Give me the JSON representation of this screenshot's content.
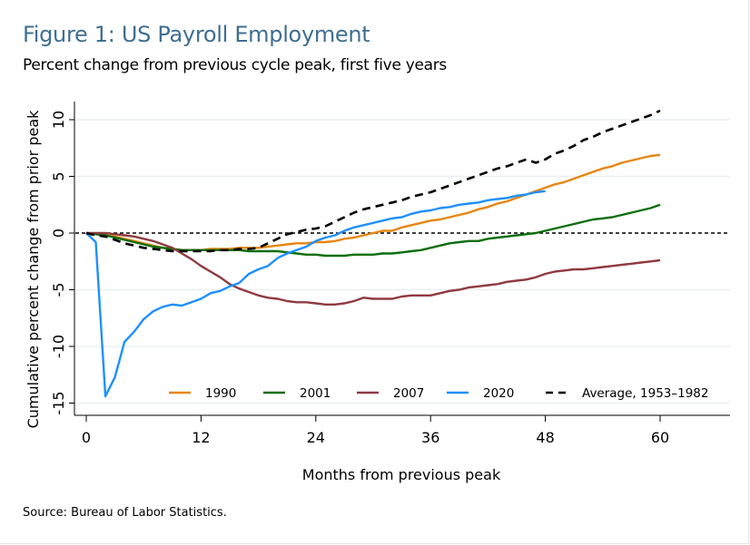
{
  "header": {
    "title": "Figure 1: US Payroll Employment",
    "subtitle": "Percent change from previous cycle peak, first five years"
  },
  "footer": {
    "source": "Source: Bureau of Labor Statistics."
  },
  "chart_data": {
    "type": "line",
    "title": "Figure 1: US Payroll Employment",
    "subtitle": "Percent change from previous cycle peak, first five years",
    "xlabel": "Months from previous peak",
    "ylabel": "Cumulative percent change from prior peak",
    "xlim": [
      -1,
      67
    ],
    "ylim": [
      -16,
      11
    ],
    "xticks": [
      0,
      12,
      24,
      36,
      48,
      60
    ],
    "yticks": [
      -15,
      -10,
      -5,
      0,
      5,
      10
    ],
    "grid": "horizontal",
    "reference_line": {
      "y": 0,
      "style": "dotted",
      "color": "#000000"
    },
    "legend": {
      "placement": "bottom-inside",
      "orientation": "horizontal"
    },
    "series": [
      {
        "name": "1990",
        "color": "#e8850f",
        "style": "solid",
        "x": [
          0,
          1,
          2,
          3,
          4,
          5,
          6,
          7,
          8,
          9,
          10,
          11,
          12,
          13,
          14,
          15,
          16,
          17,
          18,
          19,
          20,
          21,
          22,
          23,
          24,
          25,
          26,
          27,
          28,
          29,
          30,
          31,
          32,
          33,
          34,
          35,
          36,
          37,
          38,
          39,
          40,
          41,
          42,
          43,
          44,
          45,
          46,
          47,
          48,
          49,
          50,
          51,
          52,
          53,
          54,
          55,
          56,
          57,
          58,
          59,
          60
        ],
        "values": [
          0,
          -0.1,
          -0.2,
          -0.3,
          -0.5,
          -0.7,
          -0.9,
          -1.1,
          -1.3,
          -1.4,
          -1.5,
          -1.5,
          -1.5,
          -1.4,
          -1.4,
          -1.4,
          -1.3,
          -1.3,
          -1.3,
          -1.2,
          -1.1,
          -1.0,
          -0.9,
          -0.9,
          -0.8,
          -0.8,
          -0.7,
          -0.5,
          -0.4,
          -0.2,
          0.0,
          0.2,
          0.2,
          0.5,
          0.7,
          0.9,
          1.1,
          1.2,
          1.4,
          1.6,
          1.8,
          2.1,
          2.3,
          2.6,
          2.8,
          3.1,
          3.4,
          3.7,
          4.0,
          4.3,
          4.5,
          4.8,
          5.1,
          5.4,
          5.7,
          5.9,
          6.2,
          6.4,
          6.6,
          6.8,
          6.9
        ]
      },
      {
        "name": "2001",
        "color": "#0b6e0b",
        "style": "solid",
        "x": [
          0,
          1,
          2,
          3,
          4,
          5,
          6,
          7,
          8,
          9,
          10,
          11,
          12,
          13,
          14,
          15,
          16,
          17,
          18,
          19,
          20,
          21,
          22,
          23,
          24,
          25,
          26,
          27,
          28,
          29,
          30,
          31,
          32,
          33,
          34,
          35,
          36,
          37,
          38,
          39,
          40,
          41,
          42,
          43,
          44,
          45,
          46,
          47,
          48,
          49,
          50,
          51,
          52,
          53,
          54,
          55,
          56,
          57,
          58,
          59,
          60
        ],
        "values": [
          0,
          -0.1,
          -0.2,
          -0.4,
          -0.6,
          -0.8,
          -1.0,
          -1.2,
          -1.3,
          -1.4,
          -1.5,
          -1.5,
          -1.5,
          -1.5,
          -1.5,
          -1.5,
          -1.5,
          -1.6,
          -1.6,
          -1.6,
          -1.6,
          -1.7,
          -1.8,
          -1.9,
          -1.9,
          -2.0,
          -2.0,
          -2.0,
          -1.9,
          -1.9,
          -1.9,
          -1.8,
          -1.8,
          -1.7,
          -1.6,
          -1.5,
          -1.3,
          -1.1,
          -0.9,
          -0.8,
          -0.7,
          -0.7,
          -0.5,
          -0.4,
          -0.3,
          -0.2,
          -0.1,
          0.0,
          0.2,
          0.4,
          0.6,
          0.8,
          1.0,
          1.2,
          1.3,
          1.4,
          1.6,
          1.8,
          2.0,
          2.2,
          2.5
        ]
      },
      {
        "name": "2007",
        "color": "#8f3a3f",
        "style": "solid",
        "x": [
          0,
          1,
          2,
          3,
          4,
          5,
          6,
          7,
          8,
          9,
          10,
          11,
          12,
          13,
          14,
          15,
          16,
          17,
          18,
          19,
          20,
          21,
          22,
          23,
          24,
          25,
          26,
          27,
          28,
          29,
          30,
          31,
          32,
          33,
          34,
          35,
          36,
          37,
          38,
          39,
          40,
          41,
          42,
          43,
          44,
          45,
          46,
          47,
          48,
          49,
          50,
          51,
          52,
          53,
          54,
          55,
          56,
          57,
          58,
          59,
          60
        ],
        "values": [
          0,
          0,
          0,
          -0.1,
          -0.2,
          -0.3,
          -0.5,
          -0.7,
          -1.0,
          -1.3,
          -1.8,
          -2.3,
          -2.9,
          -3.4,
          -3.9,
          -4.5,
          -4.9,
          -5.2,
          -5.5,
          -5.7,
          -5.8,
          -6.0,
          -6.1,
          -6.1,
          -6.2,
          -6.3,
          -6.3,
          -6.2,
          -6.0,
          -5.7,
          -5.8,
          -5.8,
          -5.8,
          -5.6,
          -5.5,
          -5.5,
          -5.5,
          -5.3,
          -5.1,
          -5.0,
          -4.8,
          -4.7,
          -4.6,
          -4.5,
          -4.3,
          -4.2,
          -4.1,
          -3.9,
          -3.6,
          -3.4,
          -3.3,
          -3.2,
          -3.2,
          -3.1,
          -3.0,
          -2.9,
          -2.8,
          -2.7,
          -2.6,
          -2.5,
          -2.4
        ]
      },
      {
        "name": "2020",
        "color": "#1e90ff",
        "style": "solid",
        "x": [
          0,
          1,
          2,
          3,
          4,
          5,
          6,
          7,
          8,
          9,
          10,
          11,
          12,
          13,
          14,
          15,
          16,
          17,
          18,
          19,
          20,
          21,
          22,
          23,
          24,
          25,
          26,
          27,
          28,
          29,
          30,
          31,
          32,
          33,
          34,
          35,
          36,
          37,
          38,
          39,
          40,
          41,
          42,
          43,
          44,
          45,
          46,
          47,
          48
        ],
        "values": [
          0,
          -0.8,
          -14.4,
          -12.7,
          -9.6,
          -8.7,
          -7.6,
          -6.9,
          -6.5,
          -6.3,
          -6.4,
          -6.1,
          -5.8,
          -5.3,
          -5.1,
          -4.7,
          -4.4,
          -3.6,
          -3.2,
          -2.9,
          -2.2,
          -1.8,
          -1.5,
          -1.2,
          -0.7,
          -0.4,
          -0.2,
          0.2,
          0.5,
          0.7,
          0.9,
          1.1,
          1.3,
          1.4,
          1.7,
          1.9,
          2.0,
          2.2,
          2.3,
          2.5,
          2.6,
          2.7,
          2.9,
          3.0,
          3.1,
          3.3,
          3.4,
          3.6,
          3.7
        ]
      },
      {
        "name": "Average, 1953–1982",
        "color": "#000000",
        "style": "dashed",
        "x": [
          0,
          1,
          2,
          3,
          4,
          5,
          6,
          7,
          8,
          9,
          10,
          11,
          12,
          13,
          14,
          15,
          16,
          17,
          18,
          19,
          20,
          21,
          22,
          23,
          24,
          25,
          26,
          27,
          28,
          29,
          30,
          31,
          32,
          33,
          34,
          35,
          36,
          37,
          38,
          39,
          40,
          41,
          42,
          43,
          44,
          45,
          46,
          47,
          48,
          49,
          50,
          51,
          52,
          53,
          54,
          55,
          56,
          57,
          58,
          59,
          60
        ],
        "values": [
          0,
          -0.2,
          -0.3,
          -0.6,
          -0.9,
          -1.1,
          -1.3,
          -1.4,
          -1.5,
          -1.6,
          -1.6,
          -1.6,
          -1.6,
          -1.6,
          -1.5,
          -1.5,
          -1.4,
          -1.4,
          -1.3,
          -0.9,
          -0.5,
          -0.1,
          0.1,
          0.3,
          0.4,
          0.6,
          1.0,
          1.4,
          1.8,
          2.1,
          2.3,
          2.5,
          2.7,
          2.9,
          3.2,
          3.4,
          3.6,
          3.9,
          4.2,
          4.5,
          4.8,
          5.1,
          5.4,
          5.7,
          5.9,
          6.2,
          6.5,
          6.2,
          6.5,
          7.0,
          7.3,
          7.7,
          8.2,
          8.5,
          8.9,
          9.2,
          9.5,
          9.8,
          10.1,
          10.4,
          10.8
        ]
      }
    ]
  }
}
